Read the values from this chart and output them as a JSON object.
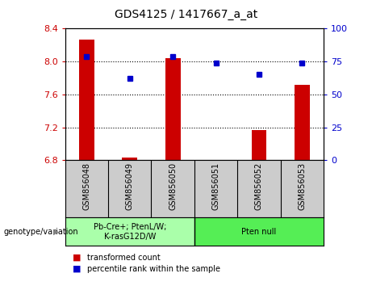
{
  "title": "GDS4125 / 1417667_a_at",
  "samples": [
    "GSM856048",
    "GSM856049",
    "GSM856050",
    "GSM856051",
    "GSM856052",
    "GSM856053"
  ],
  "red_values": [
    8.27,
    6.83,
    8.04,
    6.8,
    7.17,
    7.72
  ],
  "blue_values": [
    79,
    62,
    79,
    74,
    65,
    74
  ],
  "ylim_left": [
    6.8,
    8.4
  ],
  "ylim_right": [
    0,
    100
  ],
  "yticks_left": [
    6.8,
    7.2,
    7.6,
    8.0,
    8.4
  ],
  "yticks_right": [
    0,
    25,
    50,
    75,
    100
  ],
  "bar_base": 6.8,
  "group1_label": "Pb-Cre+; PtenL/W;\nK-rasG12D/W",
  "group2_label": "Pten null",
  "group1_color": "#aaffaa",
  "group2_color": "#55ee55",
  "bar_color": "#cc0000",
  "dot_color": "#0000cc",
  "ylabel_left_color": "#cc0000",
  "ylabel_right_color": "#0000cc",
  "legend_red_label": "transformed count",
  "legend_blue_label": "percentile rank within the sample",
  "xlabel_area_color": "#cccccc",
  "genotype_label": "genotype/variation",
  "gridline_ticks": [
    7.2,
    7.6,
    8.0
  ],
  "bar_width": 0.35
}
